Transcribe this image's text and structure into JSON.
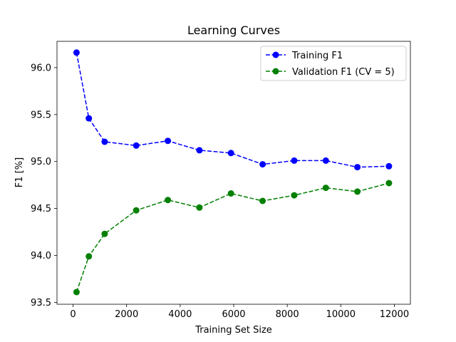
{
  "chart_data": {
    "type": "line",
    "title": "Learning Curves",
    "xlabel": "Training Set Size",
    "ylabel": "F1 [%]",
    "xlim": [
      -600,
      12600
    ],
    "ylim": [
      93.48,
      96.28
    ],
    "x_ticks": [
      0,
      2000,
      4000,
      6000,
      8000,
      10000,
      12000
    ],
    "y_ticks": [
      93.5,
      94.0,
      94.5,
      95.0,
      95.5,
      96.0
    ],
    "x_tick_labels": [
      "0",
      "2000",
      "4000",
      "6000",
      "8000",
      "10000",
      "12000"
    ],
    "y_tick_labels": [
      "93.5",
      "94.0",
      "94.5",
      "95.0",
      "95.5",
      "96.0"
    ],
    "grid": false,
    "legend_position": "top-right",
    "x": [
      130,
      590,
      1180,
      2360,
      3540,
      4720,
      5900,
      7080,
      8260,
      9440,
      10620,
      11800
    ],
    "series": [
      {
        "name": "Training F1",
        "color": "#0000ff",
        "line_style": "dashed",
        "marker": "circle",
        "values": [
          96.16,
          95.46,
          95.21,
          95.17,
          95.22,
          95.12,
          95.09,
          94.97,
          95.01,
          95.01,
          94.94,
          94.95
        ]
      },
      {
        "name": "Validation F1 (CV = 5)",
        "color": "#008000",
        "line_style": "dashed",
        "marker": "circle",
        "values": [
          93.61,
          93.99,
          94.23,
          94.48,
          94.59,
          94.51,
          94.66,
          94.58,
          94.64,
          94.72,
          94.68,
          94.77
        ]
      }
    ]
  }
}
